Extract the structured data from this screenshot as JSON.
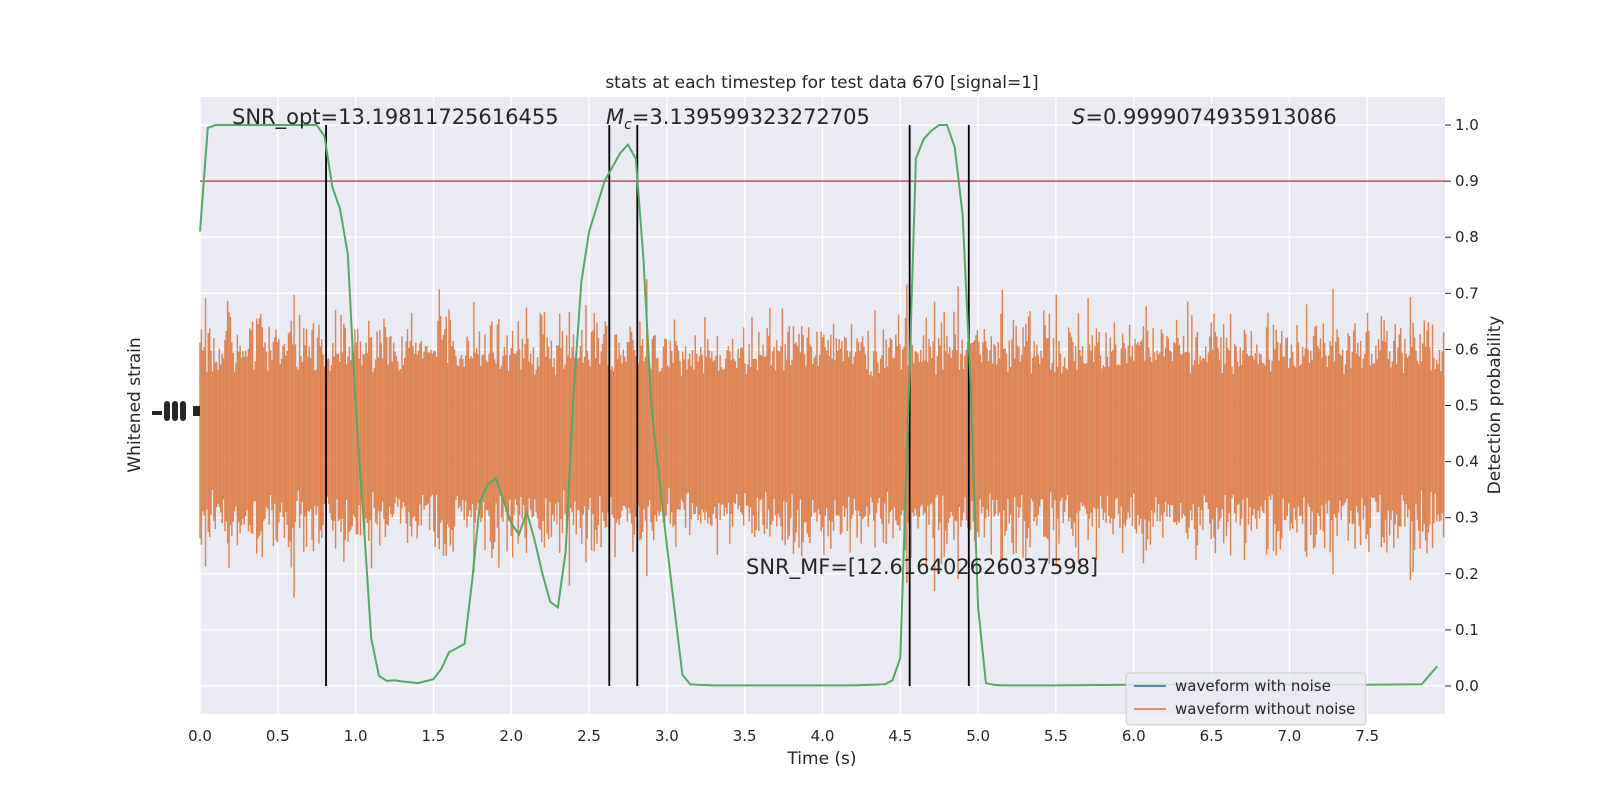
{
  "chart_data": {
    "type": "line",
    "title": "stats at each timestep for test data 670 [signal=1]",
    "xlabel": "Time (s)",
    "ylabel_left": "Whitened strain",
    "ylabel_right": "Detection probability",
    "xlim": [
      0,
      8
    ],
    "ylim_right": [
      -0.05,
      1.05
    ],
    "x_ticks": [
      0.0,
      0.5,
      1.0,
      1.5,
      2.0,
      2.5,
      3.0,
      3.5,
      4.0,
      4.5,
      5.0,
      5.5,
      6.0,
      6.5,
      7.0,
      7.5
    ],
    "x_tick_labels": [
      "0.0",
      "0.5",
      "1.0",
      "1.5",
      "2.0",
      "2.5",
      "3.0",
      "3.5",
      "4.0",
      "4.5",
      "5.0",
      "5.5",
      "6.0",
      "6.5",
      "7.0",
      "7.5"
    ],
    "y_ticks_right": [
      0.0,
      0.1,
      0.2,
      0.3,
      0.4,
      0.5,
      0.6,
      0.7,
      0.8,
      0.9,
      1.0
    ],
    "y_tick_labels_right": [
      "0.0",
      "0.1",
      "0.2",
      "0.3",
      "0.4",
      "0.5",
      "0.6",
      "0.7",
      "0.8",
      "0.9",
      "1.0"
    ],
    "grid": true,
    "legend_placement": "lower-right",
    "legend": [
      {
        "label": "waveform with noise",
        "color": "#4c72b0"
      },
      {
        "label": "waveform without noise",
        "color": "#dd8452"
      }
    ],
    "annotations": {
      "snr_opt": "SNR_opt=13.19811725616455",
      "mc_symbol": "M",
      "mc_sub": "c",
      "mc_value": "=3.139599323272705",
      "s_symbol": "S",
      "s_value": "=0.9999074935913086",
      "snr_mf": "SNR_MF=[12.616402626037598]"
    },
    "threshold": {
      "value": 0.9,
      "color": "#c44e52"
    },
    "vertical_lines_x": [
      0.81,
      2.63,
      2.81,
      4.56,
      4.94
    ],
    "vertical_line_range": [
      0.0,
      1.0
    ],
    "strain_series": {
      "name": "waveform without noise",
      "color": "#dd8452",
      "band_center": 0.455,
      "band_half_height": 0.13,
      "n_samples": 900
    },
    "probability_series": {
      "color": "#55a868",
      "x": [
        0.0,
        0.05,
        0.1,
        0.15,
        0.2,
        0.3,
        0.4,
        0.5,
        0.6,
        0.7,
        0.75,
        0.8,
        0.85,
        0.9,
        0.95,
        1.0,
        1.05,
        1.1,
        1.15,
        1.2,
        1.25,
        1.3,
        1.4,
        1.5,
        1.55,
        1.6,
        1.7,
        1.75,
        1.8,
        1.85,
        1.9,
        1.95,
        2.0,
        2.05,
        2.1,
        2.15,
        2.2,
        2.25,
        2.3,
        2.35,
        2.4,
        2.45,
        2.5,
        2.6,
        2.7,
        2.75,
        2.8,
        2.85,
        2.9,
        3.0,
        3.1,
        3.15,
        3.2,
        3.3,
        3.5,
        3.8,
        4.0,
        4.2,
        4.4,
        4.45,
        4.5,
        4.55,
        4.6,
        4.65,
        4.7,
        4.75,
        4.8,
        4.85,
        4.9,
        4.95,
        5.0,
        5.05,
        5.1,
        5.15,
        5.2,
        5.3,
        5.5,
        6.0,
        6.5,
        7.0,
        7.5,
        7.85,
        7.95
      ],
      "y": [
        0.81,
        0.995,
        1.0,
        1.0,
        1.0,
        1.0,
        1.0,
        1.0,
        1.0,
        1.0,
        1.0,
        0.98,
        0.89,
        0.85,
        0.77,
        0.5,
        0.3,
        0.085,
        0.018,
        0.009,
        0.01,
        0.008,
        0.005,
        0.012,
        0.03,
        0.06,
        0.075,
        0.19,
        0.33,
        0.36,
        0.37,
        0.33,
        0.29,
        0.27,
        0.31,
        0.26,
        0.2,
        0.15,
        0.14,
        0.24,
        0.52,
        0.72,
        0.81,
        0.9,
        0.95,
        0.965,
        0.94,
        0.76,
        0.5,
        0.25,
        0.02,
        0.003,
        0.002,
        0.001,
        0.001,
        0.001,
        0.001,
        0.001,
        0.003,
        0.01,
        0.05,
        0.48,
        0.94,
        0.975,
        0.99,
        1.0,
        1.0,
        0.96,
        0.84,
        0.55,
        0.14,
        0.005,
        0.002,
        0.001,
        0.001,
        0.001,
        0.001,
        0.002,
        0.002,
        0.002,
        0.002,
        0.003,
        0.035
      ]
    }
  }
}
